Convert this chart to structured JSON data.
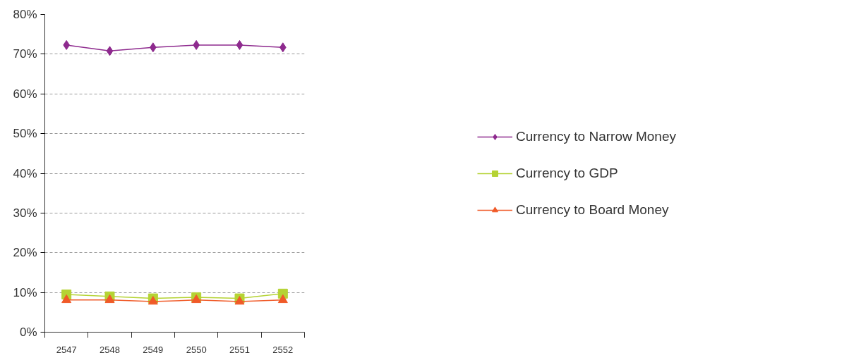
{
  "chart_data": {
    "type": "line",
    "categories": [
      "2547",
      "2548",
      "2549",
      "2550",
      "2551",
      "2552"
    ],
    "series": [
      {
        "name": "Currency to Narrow Money",
        "color": "#8e2a8e",
        "marker": "diamond",
        "values": [
          72.3,
          70.8,
          71.7,
          72.3,
          72.3,
          71.7
        ]
      },
      {
        "name": "Currency to GDP",
        "color": "#b5d334",
        "marker": "square",
        "values": [
          9.5,
          9.0,
          8.5,
          8.8,
          8.5,
          9.7
        ]
      },
      {
        "name": "Currency to Board Money",
        "color": "#f05a28",
        "marker": "triangle",
        "values": [
          8.1,
          8.1,
          7.7,
          8.1,
          7.7,
          8.1
        ]
      }
    ],
    "ylim": [
      0,
      80
    ],
    "yticks": [
      {
        "value": 0,
        "label": "0%"
      },
      {
        "value": 10,
        "label": "10%"
      },
      {
        "value": 20,
        "label": "20%"
      },
      {
        "value": 30,
        "label": "30%"
      },
      {
        "value": 40,
        "label": "40%"
      },
      {
        "value": 50,
        "label": "50%"
      },
      {
        "value": 60,
        "label": "60%"
      },
      {
        "value": 70,
        "label": "70%"
      },
      {
        "value": 80,
        "label": "80%"
      }
    ],
    "grid": "y",
    "legend": "right",
    "line_style": "solid"
  }
}
